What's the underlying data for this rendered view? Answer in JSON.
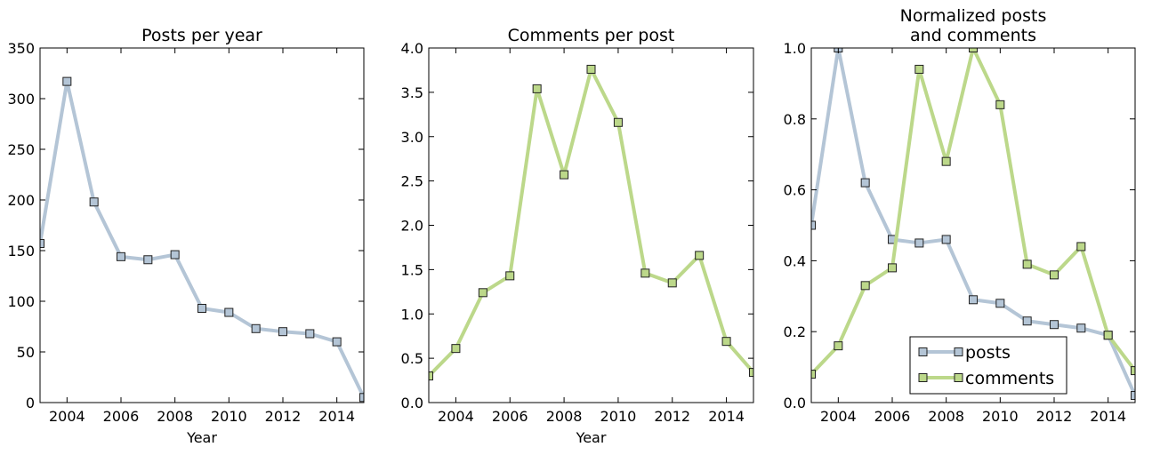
{
  "chart_data": [
    {
      "type": "line",
      "title": "Posts per year",
      "xlabel": "Year",
      "x": [
        2003,
        2004,
        2005,
        2006,
        2007,
        2008,
        2009,
        2010,
        2011,
        2012,
        2013,
        2014,
        2015
      ],
      "series": [
        {
          "name": "posts",
          "color": "#b4c5d6",
          "values": [
            157,
            317,
            198,
            144,
            141,
            146,
            93,
            89,
            73,
            70,
            68,
            60,
            5
          ]
        }
      ],
      "xlim": [
        2003,
        2015
      ],
      "xticks": [
        2004,
        2006,
        2008,
        2010,
        2012,
        2014
      ],
      "ylim": [
        0,
        350
      ],
      "yticks": [
        0,
        50,
        100,
        150,
        200,
        250,
        300,
        350
      ]
    },
    {
      "type": "line",
      "title": "Comments per post",
      "xlabel": "Year",
      "x": [
        2003,
        2004,
        2005,
        2006,
        2007,
        2008,
        2009,
        2010,
        2011,
        2012,
        2013,
        2014,
        2015
      ],
      "series": [
        {
          "name": "comments",
          "color": "#bcd88a",
          "values": [
            0.3,
            0.61,
            1.24,
            1.43,
            3.54,
            2.57,
            3.76,
            3.16,
            1.46,
            1.35,
            1.66,
            0.69,
            0.34
          ]
        }
      ],
      "xlim": [
        2003,
        2015
      ],
      "xticks": [
        2004,
        2006,
        2008,
        2010,
        2012,
        2014
      ],
      "ylim": [
        0,
        4
      ],
      "yticks": [
        {
          "value": 0,
          "label": "0.0"
        },
        0.5,
        {
          "value": 1,
          "label": "1.0"
        },
        1.5,
        {
          "value": 2,
          "label": "2.0"
        },
        2.5,
        {
          "value": 3,
          "label": "3.0"
        },
        3.5,
        {
          "value": 4,
          "label": "4.0"
        }
      ]
    },
    {
      "type": "line",
      "title": "Normalized posts\nand comments",
      "legend": "lower center",
      "x": [
        2003,
        2004,
        2005,
        2006,
        2007,
        2008,
        2009,
        2010,
        2011,
        2012,
        2013,
        2014,
        2015
      ],
      "series": [
        {
          "name": "posts",
          "color": "#b4c5d6",
          "values": [
            0.5,
            1.0,
            0.62,
            0.46,
            0.45,
            0.46,
            0.29,
            0.28,
            0.23,
            0.22,
            0.21,
            0.19,
            0.02
          ]
        },
        {
          "name": "comments",
          "color": "#bcd88a",
          "values": [
            0.08,
            0.16,
            0.33,
            0.38,
            0.94,
            0.68,
            1.0,
            0.84,
            0.39,
            0.36,
            0.44,
            0.19,
            0.09
          ]
        }
      ],
      "xlim": [
        2003,
        2015
      ],
      "xticks": [
        2004,
        2006,
        2008,
        2010,
        2012,
        2014
      ],
      "ylim": [
        0,
        1
      ],
      "yticks": [
        {
          "value": 0,
          "label": "0.0"
        },
        0.2,
        0.4,
        0.6,
        0.8,
        {
          "value": 1,
          "label": "1.0"
        }
      ]
    }
  ]
}
